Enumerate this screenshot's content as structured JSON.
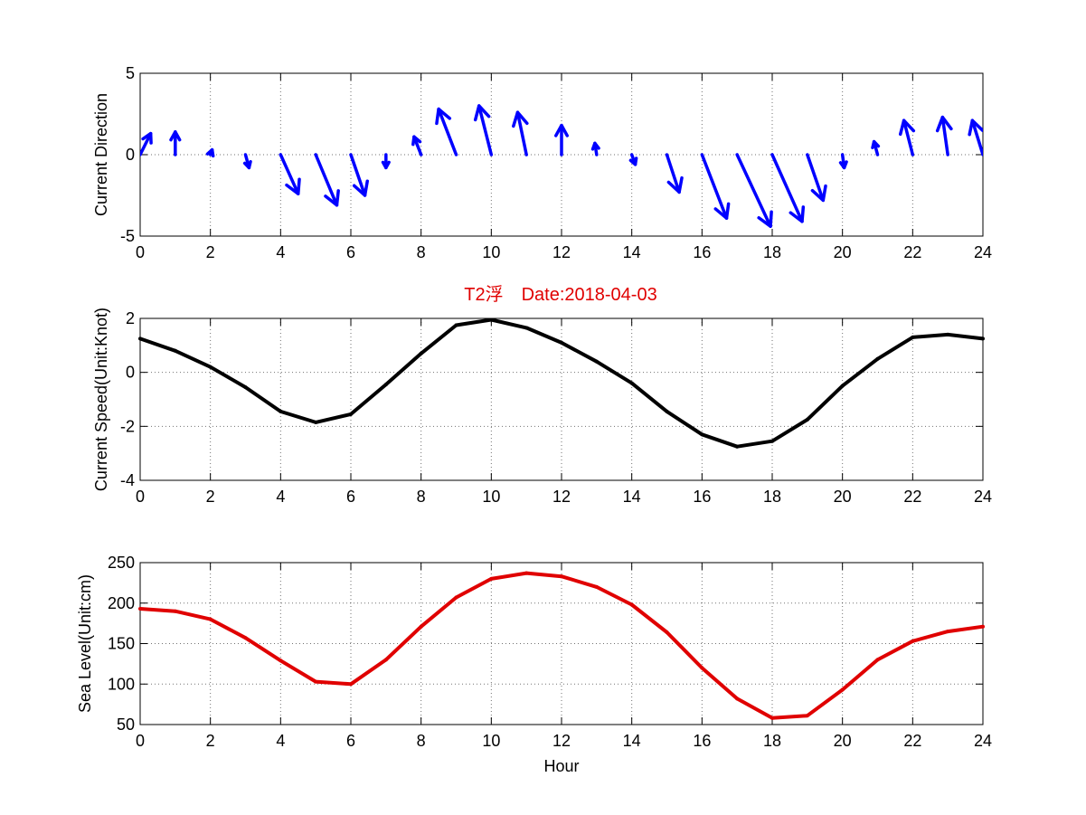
{
  "figure_title": "T2浮　Date:2018-04-03",
  "colors": {
    "quiver": "#0000ff",
    "speed": "#000000",
    "sea_level": "#e00000",
    "title": "#e00000"
  },
  "chart_data": [
    {
      "type": "quiver",
      "ylabel": "Current Direction",
      "xlim": [
        0,
        24
      ],
      "ylim": [
        -5,
        5
      ],
      "xticks": [
        "0",
        "2",
        "4",
        "6",
        "8",
        "10",
        "12",
        "14",
        "16",
        "18",
        "20",
        "22",
        "24"
      ],
      "yticks": [
        "-5",
        "0",
        "5"
      ],
      "grid": true,
      "x": [
        0,
        1,
        2,
        3,
        4,
        5,
        6,
        7,
        8,
        9,
        10,
        11,
        12,
        13,
        14,
        15,
        16,
        17,
        18,
        19,
        20,
        21,
        22,
        23,
        24
      ],
      "u": [
        0.3,
        0,
        0.05,
        0.1,
        0.5,
        0.6,
        0.4,
        0,
        -0.2,
        -0.5,
        -0.35,
        -0.25,
        0,
        -0.05,
        0.1,
        0.35,
        0.7,
        0.95,
        0.85,
        0.45,
        0.05,
        -0.1,
        -0.25,
        -0.15,
        -0.3
      ],
      "v": [
        1.3,
        1.4,
        0.3,
        -0.8,
        -2.4,
        -3.1,
        -2.5,
        -0.8,
        1.1,
        2.8,
        3.0,
        2.6,
        1.8,
        0.7,
        -0.6,
        -2.3,
        -3.9,
        -4.4,
        -4.1,
        -2.8,
        -0.8,
        0.8,
        2.1,
        2.3,
        2.1
      ]
    },
    {
      "type": "line",
      "ylabel": "Current Speed(Unit:Knot)",
      "xlim": [
        0,
        24
      ],
      "ylim": [
        -4,
        2
      ],
      "xticks": [
        "0",
        "2",
        "4",
        "6",
        "8",
        "10",
        "12",
        "14",
        "16",
        "18",
        "20",
        "22",
        "24"
      ],
      "yticks": [
        "-4",
        "-2",
        "0",
        "2"
      ],
      "grid": true,
      "x": [
        0,
        1,
        2,
        3,
        4,
        5,
        6,
        7,
        8,
        9,
        10,
        11,
        12,
        13,
        14,
        15,
        16,
        17,
        18,
        19,
        20,
        21,
        22,
        23,
        24
      ],
      "y": [
        1.25,
        0.8,
        0.2,
        -0.55,
        -1.45,
        -1.85,
        -1.55,
        -0.45,
        0.7,
        1.75,
        1.95,
        1.65,
        1.1,
        0.4,
        -0.4,
        -1.45,
        -2.3,
        -2.75,
        -2.55,
        -1.75,
        -0.5,
        0.5,
        1.3,
        1.4,
        1.25
      ]
    },
    {
      "type": "line",
      "ylabel": "Sea Level(Unit:cm)",
      "xlabel": "Hour",
      "xlim": [
        0,
        24
      ],
      "ylim": [
        50,
        250
      ],
      "xticks": [
        "0",
        "2",
        "4",
        "6",
        "8",
        "10",
        "12",
        "14",
        "16",
        "18",
        "20",
        "22",
        "24"
      ],
      "yticks": [
        "50",
        "100",
        "150",
        "200",
        "250"
      ],
      "grid": true,
      "x": [
        0,
        1,
        2,
        3,
        4,
        5,
        6,
        7,
        8,
        9,
        10,
        11,
        12,
        13,
        14,
        15,
        16,
        17,
        18,
        19,
        20,
        21,
        22,
        23,
        24
      ],
      "y": [
        193,
        190,
        180,
        157,
        129,
        103,
        100,
        130,
        171,
        207,
        230,
        237,
        233,
        220,
        198,
        164,
        120,
        82,
        58,
        61,
        93,
        130,
        153,
        165,
        171
      ]
    }
  ]
}
